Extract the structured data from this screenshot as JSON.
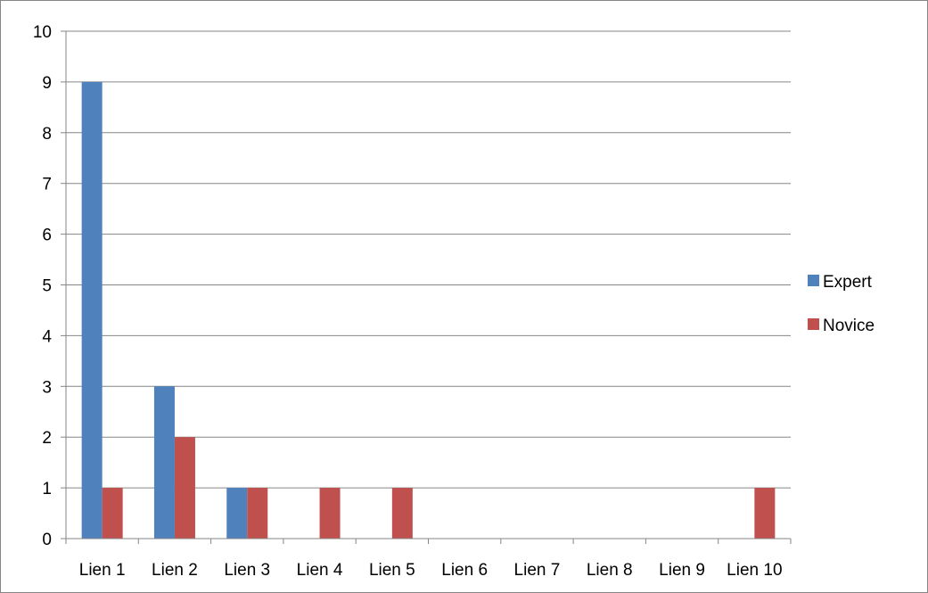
{
  "chart_data": {
    "type": "bar",
    "categories": [
      "Lien 1",
      "Lien 2",
      "Lien 3",
      "Lien 4",
      "Lien 5",
      "Lien 6",
      "Lien 7",
      "Lien 8",
      "Lien 9",
      "Lien 10"
    ],
    "series": [
      {
        "name": "Expert",
        "values": [
          9,
          3,
          1,
          0,
          0,
          0,
          0,
          0,
          0,
          0
        ],
        "color": "#4F81BD"
      },
      {
        "name": "Novice",
        "values": [
          1,
          2,
          1,
          1,
          1,
          0,
          0,
          0,
          0,
          1
        ],
        "color": "#C0504D"
      }
    ],
    "ylim": [
      0,
      10
    ],
    "yticks": [
      0,
      1,
      2,
      3,
      4,
      5,
      6,
      7,
      8,
      9,
      10
    ],
    "grid": true,
    "legend": "right"
  }
}
